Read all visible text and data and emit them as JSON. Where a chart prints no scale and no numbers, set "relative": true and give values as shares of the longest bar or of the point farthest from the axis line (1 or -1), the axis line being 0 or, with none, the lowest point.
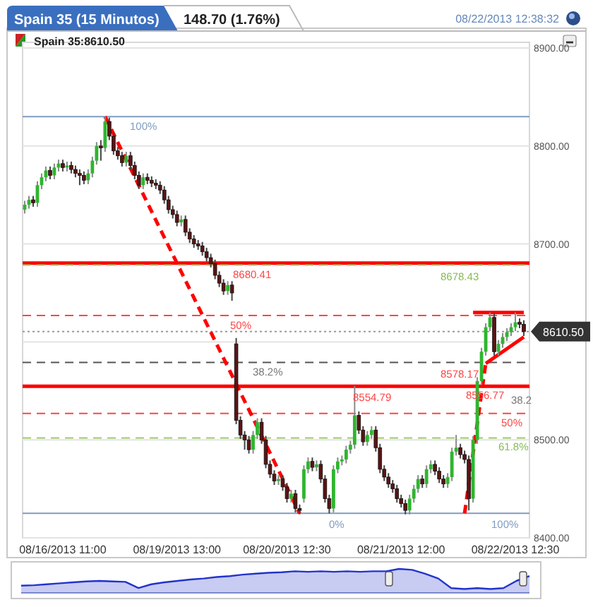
{
  "chart_data": [
    {
      "type": "candlestick",
      "title": "Spain 35 (15 Minutos)",
      "subtitle": "148.70 (1.76%)",
      "annotations": [
        "08/22/2013 12:38:32",
        "Spain 35:8610.50",
        "100%",
        "50%",
        "38.2%",
        "50%",
        "61.8%",
        "0%",
        "100%",
        "38.2",
        {
          "text": "8578.17",
          "y": 8578.17
        },
        {
          "text": "8556.77",
          "y": 8556.77
        }
      ],
      "categories": [
        null,
        null,
        null,
        null,
        null,
        null,
        null,
        null,
        null,
        "08/16/2013 11:00",
        null,
        null,
        null,
        null,
        null,
        null,
        null,
        null,
        null,
        null,
        null,
        null,
        null,
        null,
        null,
        null,
        null,
        null,
        null,
        null,
        null,
        null,
        null,
        null,
        null,
        null,
        "08/19/2013 13:00",
        null,
        null,
        null,
        null,
        null,
        null,
        null,
        null,
        null,
        null,
        null,
        null,
        null,
        null,
        null,
        null,
        null,
        null,
        null,
        null,
        null,
        null,
        null,
        null,
        null,
        "08/20/2013 12:30",
        null,
        null,
        null,
        null,
        null,
        null,
        null,
        null,
        null,
        null,
        null,
        null,
        null,
        null,
        null,
        null,
        null,
        null,
        null,
        null,
        null,
        null,
        null,
        null,
        null,
        null,
        "08/21/2013 12:00",
        null,
        null,
        null,
        null,
        null,
        null,
        null,
        null,
        null,
        null,
        null,
        null,
        null,
        null,
        null,
        null,
        null,
        null,
        null,
        null,
        null,
        null,
        null,
        null,
        null,
        null,
        "08/22/2013 12:30",
        null,
        null
      ],
      "ohlc": [
        [
          8735,
          8744,
          8731,
          8740
        ],
        [
          8740,
          8749,
          8736,
          8745
        ],
        [
          8745,
          8749,
          8738,
          8742
        ],
        [
          8742,
          8764,
          8738,
          8760
        ],
        [
          8760,
          8772,
          8756,
          8768
        ],
        [
          8768,
          8779,
          8764,
          8775
        ],
        [
          8775,
          8779,
          8766,
          8770
        ],
        [
          8770,
          8782,
          8766,
          8778
        ],
        [
          8778,
          8786,
          8774,
          8782
        ],
        [
          8782,
          8786,
          8774,
          8778
        ],
        [
          8778,
          8784,
          8774,
          8780
        ],
        [
          8780,
          8784,
          8772,
          8776
        ],
        [
          8776,
          8780,
          8768,
          8772
        ],
        [
          8772,
          8776,
          8760,
          8770
        ],
        [
          8770,
          8774,
          8761,
          8765
        ],
        [
          8765,
          8776,
          8761,
          8772
        ],
        [
          8772,
          8789,
          8768,
          8785
        ],
        [
          8785,
          8804,
          8781,
          8800
        ],
        [
          8800,
          8806,
          8785,
          8798
        ],
        [
          8798,
          8830,
          8794,
          8825
        ],
        [
          8825,
          8829,
          8806,
          8810
        ],
        [
          8810,
          8814,
          8791,
          8795
        ],
        [
          8795,
          8799,
          8786,
          8790
        ],
        [
          8790,
          8794,
          8779,
          8783
        ],
        [
          8783,
          8794,
          8779,
          8790
        ],
        [
          8790,
          8794,
          8776,
          8780
        ],
        [
          8780,
          8784,
          8766,
          8770
        ],
        [
          8770,
          8774,
          8756,
          8760
        ],
        [
          8760,
          8772,
          8756,
          8768
        ],
        [
          8768,
          8772,
          8761,
          8765
        ],
        [
          8765,
          8769,
          8758,
          8762
        ],
        [
          8762,
          8766,
          8756,
          8760
        ],
        [
          8760,
          8764,
          8751,
          8755
        ],
        [
          8755,
          8759,
          8741,
          8745
        ],
        [
          8745,
          8749,
          8731,
          8735
        ],
        [
          8735,
          8739,
          8726,
          8730
        ],
        [
          8730,
          8734,
          8718,
          8722
        ],
        [
          8722,
          8729,
          8718,
          8725
        ],
        [
          8725,
          8729,
          8708,
          8712
        ],
        [
          8712,
          8716,
          8701,
          8705
        ],
        [
          8705,
          8709,
          8696,
          8700
        ],
        [
          8700,
          8704,
          8694,
          8698
        ],
        [
          8698,
          8702,
          8688,
          8692
        ],
        [
          8692,
          8696,
          8682,
          8686
        ],
        [
          8686,
          8690,
          8676,
          8680
        ],
        [
          8680,
          8684,
          8664,
          8668
        ],
        [
          8668,
          8672,
          8656,
          8660
        ],
        [
          8660,
          8664,
          8648,
          8652
        ],
        [
          8652,
          8662,
          8648,
          8658
        ],
        [
          8658,
          8662,
          8642,
          8650
        ],
        [
          8598,
          8604,
          8516,
          8520
        ],
        [
          8520,
          8524,
          8501,
          8505
        ],
        [
          8505,
          8509,
          8490,
          8500
        ],
        [
          8500,
          8504,
          8486,
          8490
        ],
        [
          8490,
          8509,
          8486,
          8505
        ],
        [
          8505,
          8522,
          8501,
          8518
        ],
        [
          8518,
          8522,
          8496,
          8500
        ],
        [
          8500,
          8504,
          8471,
          8475
        ],
        [
          8475,
          8479,
          8461,
          8465
        ],
        [
          8465,
          8469,
          8454,
          8458
        ],
        [
          8458,
          8464,
          8454,
          8460
        ],
        [
          8460,
          8464,
          8448,
          8452
        ],
        [
          8452,
          8456,
          8436,
          8440
        ],
        [
          8440,
          8449,
          8436,
          8445
        ],
        [
          8445,
          8449,
          8426,
          8430
        ],
        [
          8430,
          8434,
          8424,
          8428
        ],
        [
          8440,
          8474,
          8436,
          8470
        ],
        [
          8470,
          8482,
          8466,
          8478
        ],
        [
          8478,
          8482,
          8468,
          8472
        ],
        [
          8472,
          8479,
          8468,
          8475
        ],
        [
          8475,
          8479,
          8456,
          8460
        ],
        [
          8460,
          8464,
          8436,
          8440
        ],
        [
          8440,
          8444,
          8425,
          8430
        ],
        [
          8430,
          8474,
          8426,
          8470
        ],
        [
          8470,
          8482,
          8466,
          8478
        ],
        [
          8478,
          8484,
          8474,
          8480
        ],
        [
          8480,
          8494,
          8476,
          8490
        ],
        [
          8490,
          8499,
          8486,
          8495
        ],
        [
          8495,
          8555,
          8491,
          8525
        ],
        [
          8525,
          8529,
          8506,
          8510
        ],
        [
          8510,
          8514,
          8494,
          8498
        ],
        [
          8498,
          8509,
          8494,
          8505
        ],
        [
          8505,
          8514,
          8501,
          8510
        ],
        [
          8510,
          8514,
          8488,
          8492
        ],
        [
          8492,
          8496,
          8466,
          8470
        ],
        [
          8470,
          8474,
          8458,
          8462
        ],
        [
          8462,
          8466,
          8451,
          8455
        ],
        [
          8455,
          8459,
          8446,
          8450
        ],
        [
          8450,
          8454,
          8436,
          8440
        ],
        [
          8440,
          8444,
          8431,
          8435
        ],
        [
          8435,
          8439,
          8424,
          8428
        ],
        [
          8428,
          8444,
          8424,
          8440
        ],
        [
          8440,
          8454,
          8436,
          8450
        ],
        [
          8450,
          8464,
          8446,
          8460
        ],
        [
          8460,
          8464,
          8451,
          8455
        ],
        [
          8455,
          8474,
          8451,
          8470
        ],
        [
          8470,
          8479,
          8466,
          8475
        ],
        [
          8475,
          8479,
          8464,
          8468
        ],
        [
          8468,
          8472,
          8456,
          8460
        ],
        [
          8460,
          8464,
          8451,
          8455
        ],
        [
          8455,
          8466,
          8451,
          8462
        ],
        [
          8462,
          8492,
          8458,
          8488
        ],
        [
          8488,
          8505,
          8484,
          8492
        ],
        [
          8492,
          8496,
          8481,
          8485
        ],
        [
          8485,
          8489,
          8476,
          8480
        ],
        [
          8480,
          8484,
          8428,
          8440
        ],
        [
          8440,
          8504,
          8436,
          8500
        ],
        [
          8500,
          8564,
          8496,
          8560
        ],
        [
          8560,
          8594,
          8556,
          8590
        ],
        [
          8590,
          8619,
          8586,
          8615
        ],
        [
          8615,
          8630,
          8611,
          8625
        ],
        [
          8625,
          8629,
          8586,
          8590
        ],
        [
          8590,
          8602,
          8586,
          8598
        ],
        [
          8598,
          8609,
          8594,
          8605
        ],
        [
          8605,
          8614,
          8601,
          8610
        ],
        [
          8610,
          8619,
          8606,
          8615
        ],
        [
          8615,
          8630,
          8611,
          8620
        ],
        [
          8620,
          8624,
          8614,
          8618
        ],
        [
          8618,
          8622,
          8606,
          8610.5
        ]
      ],
      "series": [
        {
          "type": "line",
          "color": "#ff0000",
          "line_style": "dashed",
          "values": [
            null,
            null,
            null,
            null,
            null,
            null,
            null,
            null,
            null,
            null,
            null,
            null,
            null,
            null,
            null,
            null,
            null,
            null,
            null,
            8830,
            null,
            null,
            null,
            null,
            null,
            null,
            null,
            null,
            null,
            null,
            null,
            null,
            null,
            null,
            null,
            null,
            null,
            null,
            null,
            null,
            null,
            null,
            null,
            null,
            null,
            null,
            null,
            null,
            null,
            null,
            null,
            null,
            null,
            null,
            null,
            null,
            null,
            null,
            null,
            null,
            null,
            null,
            null,
            null,
            null,
            8425,
            null,
            null,
            null,
            null,
            null,
            null,
            null,
            null,
            null,
            null,
            null,
            null,
            null,
            null,
            null,
            null,
            null,
            null,
            null,
            null,
            null,
            null,
            null,
            null,
            null,
            null,
            null,
            null,
            null,
            null,
            null,
            null,
            null,
            null,
            null,
            null,
            null,
            null,
            null,
            null,
            null,
            null,
            null,
            null,
            null,
            null,
            null,
            null,
            null,
            null,
            null,
            null,
            null
          ]
        },
        {
          "type": "line",
          "color": "#ff0000",
          "line_style": "dashed",
          "values": [
            null,
            null,
            null,
            null,
            null,
            null,
            null,
            null,
            null,
            null,
            null,
            null,
            null,
            null,
            null,
            null,
            null,
            null,
            null,
            null,
            null,
            null,
            null,
            null,
            null,
            null,
            null,
            null,
            null,
            null,
            null,
            null,
            null,
            null,
            null,
            null,
            null,
            null,
            null,
            null,
            null,
            null,
            null,
            null,
            null,
            null,
            null,
            null,
            null,
            null,
            null,
            null,
            null,
            null,
            null,
            null,
            null,
            null,
            null,
            null,
            null,
            null,
            null,
            null,
            null,
            null,
            null,
            null,
            null,
            null,
            null,
            null,
            null,
            null,
            null,
            null,
            null,
            null,
            null,
            null,
            null,
            null,
            null,
            null,
            null,
            null,
            null,
            null,
            null,
            null,
            null,
            null,
            null,
            null,
            null,
            null,
            null,
            null,
            null,
            null,
            null,
            null,
            null,
            null,
            8425,
            null,
            null,
            null,
            null,
            8578,
            null,
            null,
            null,
            null,
            null,
            null,
            null,
            null,
            null
          ]
        },
        {
          "type": "line",
          "color": "#ff0000",
          "line_style": "solid",
          "values": [
            null,
            null,
            null,
            null,
            null,
            null,
            null,
            null,
            null,
            null,
            null,
            null,
            null,
            null,
            null,
            null,
            null,
            null,
            null,
            null,
            null,
            null,
            null,
            null,
            null,
            null,
            null,
            null,
            null,
            null,
            null,
            null,
            null,
            null,
            null,
            null,
            null,
            null,
            null,
            null,
            null,
            null,
            null,
            null,
            null,
            null,
            null,
            null,
            null,
            null,
            null,
            null,
            null,
            null,
            null,
            null,
            null,
            null,
            null,
            null,
            null,
            null,
            null,
            null,
            null,
            null,
            null,
            null,
            null,
            null,
            null,
            null,
            null,
            null,
            null,
            null,
            null,
            null,
            null,
            null,
            null,
            null,
            null,
            null,
            null,
            null,
            null,
            null,
            null,
            null,
            null,
            null,
            null,
            null,
            null,
            null,
            null,
            null,
            null,
            null,
            null,
            null,
            null,
            null,
            null,
            null,
            null,
            null,
            null,
            8578,
            null,
            null,
            null,
            null,
            null,
            null,
            null,
            null,
            8605
          ]
        },
        {
          "type": "line",
          "color": "#ff0000",
          "line_style": "solid",
          "values": [
            null,
            null,
            null,
            null,
            null,
            null,
            null,
            null,
            null,
            null,
            null,
            null,
            null,
            null,
            null,
            null,
            null,
            null,
            null,
            null,
            null,
            null,
            null,
            null,
            null,
            null,
            null,
            null,
            null,
            null,
            null,
            null,
            null,
            null,
            null,
            null,
            null,
            null,
            null,
            null,
            null,
            null,
            null,
            null,
            null,
            null,
            null,
            null,
            null,
            null,
            null,
            null,
            null,
            null,
            null,
            null,
            null,
            null,
            null,
            null,
            null,
            null,
            null,
            null,
            null,
            null,
            null,
            null,
            null,
            null,
            null,
            null,
            null,
            null,
            null,
            null,
            null,
            null,
            null,
            null,
            null,
            null,
            null,
            null,
            null,
            null,
            null,
            null,
            null,
            null,
            null,
            null,
            null,
            null,
            null,
            null,
            null,
            null,
            null,
            null,
            null,
            null,
            null,
            null,
            null,
            null,
            8630,
            null,
            null,
            null,
            null,
            null,
            null,
            null,
            null,
            null,
            null,
            null,
            8630
          ]
        }
      ],
      "ref_lines": [
        {
          "axis": "y",
          "value": 8830,
          "color": "#7f9cc0",
          "line_style": "solid"
        },
        {
          "axis": "y",
          "value": 8680.41,
          "label": "8680.41",
          "color": "#ff0000",
          "line_style": "solid"
        },
        {
          "axis": "y",
          "value": 8678.43,
          "label": "8678.43",
          "color": "#99cc66",
          "line_style": "dashed"
        },
        {
          "axis": "y",
          "value": 8627,
          "color": "#ff4444",
          "line_style": "dashed"
        },
        {
          "axis": "y",
          "value": 8610.5,
          "label": "8610.50",
          "color": "#999999",
          "line_style": "dotted"
        },
        {
          "axis": "y",
          "value": 8579,
          "color": "#555555",
          "line_style": "dashed"
        },
        {
          "axis": "y",
          "value": 8554.79,
          "label": "8554.79",
          "color": "#ff0000",
          "line_style": "solid"
        },
        {
          "axis": "y",
          "value": 8527,
          "color": "#ff4444",
          "line_style": "dashed"
        },
        {
          "axis": "y",
          "value": 8502,
          "color": "#99cc66",
          "line_style": "dashed"
        },
        {
          "axis": "y",
          "value": 8425,
          "color": "#7f9cc0",
          "line_style": "solid"
        }
      ],
      "ylim": [
        8400,
        8900
      ],
      "yticks": [
        {
          "value": 8400,
          "label": "8400.00"
        },
        {
          "value": 8500,
          "label": "8500.00"
        },
        {
          "value": 8600,
          "label": null
        },
        {
          "value": 8700,
          "label": "8700.00"
        },
        {
          "value": 8800,
          "label": "8800.00"
        },
        {
          "value": 8900,
          "label": "8900.00"
        }
      ],
      "grid": "y"
    },
    {
      "type": "area",
      "relative": true,
      "color": "#2233cc",
      "categories": [
        null,
        null,
        null,
        null,
        null,
        null,
        null,
        null,
        null,
        null,
        null,
        null,
        null,
        null,
        null,
        null,
        null,
        null,
        null,
        null,
        null,
        null,
        null,
        null,
        null,
        null,
        null,
        null,
        null,
        null,
        null,
        null,
        null,
        null,
        null,
        null,
        null,
        null,
        null,
        null
      ],
      "values": [
        0.3,
        0.32,
        0.36,
        0.4,
        0.44,
        0.48,
        0.5,
        0.48,
        0.46,
        0.2,
        0.36,
        0.44,
        0.5,
        0.56,
        0.6,
        0.66,
        0.7,
        0.76,
        0.8,
        0.84,
        0.86,
        0.9,
        0.88,
        0.9,
        0.88,
        0.9,
        0.88,
        0.9,
        0.9,
        1,
        0.96,
        0.8,
        0.6,
        0.2,
        0.16,
        0.2,
        0.16,
        0.2,
        0.5,
        0.7
      ]
    }
  ]
}
